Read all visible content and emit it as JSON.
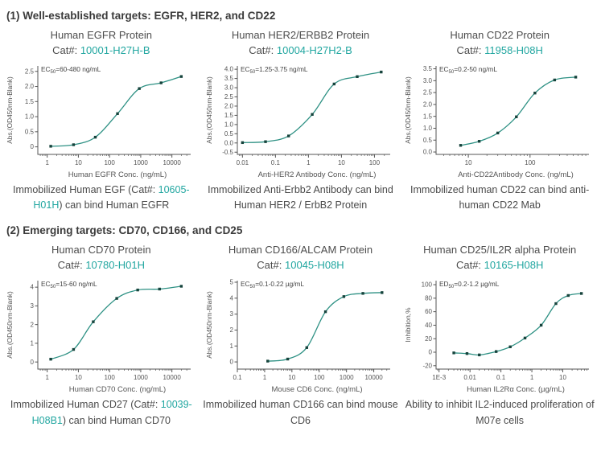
{
  "colors": {
    "accent_teal": "#21a6a0",
    "curve": "#2e9184",
    "marker": "#16433c",
    "axis": "#555555",
    "heading": "#3b3b3b",
    "body_text": "#4a4a4a"
  },
  "sections": [
    {
      "header": "(1) Well-established targets: EGFR, HER2, and CD22"
    },
    {
      "header": "(2) Emerging targets: CD70, CD166, and CD25"
    }
  ],
  "chart_data": [
    {
      "type": "scatter",
      "fit": "sigmoid",
      "title": "Human EGFR Protein",
      "cat_prefix": "Cat#: ",
      "cat_number": "10001-H27H-B",
      "annotation": {
        "prefix": "EC",
        "sub": "50",
        "text": "=60-480 ng/mL"
      },
      "xlabel": "Human EGFR Conc. (ng/mL)",
      "ylabel": "Abs.(OD450nm-Blank)",
      "xscale": "log",
      "xlim": [
        0.5,
        40000
      ],
      "ylim": [
        -0.25,
        2.68
      ],
      "yticks": [
        {
          "v": 0,
          "label": "0"
        },
        {
          "v": 0.5,
          "label": "0.5"
        },
        {
          "v": 1.0,
          "label": "1.0"
        },
        {
          "v": 1.5,
          "label": "1.5"
        },
        {
          "v": 2.0,
          "label": "2.0"
        },
        {
          "v": 2.5,
          "label": "2.5"
        }
      ],
      "xticks": [
        {
          "v": 1,
          "label": "1"
        },
        {
          "v": 10,
          "label": "10"
        },
        {
          "v": 100,
          "label": "100"
        },
        {
          "v": 1000,
          "label": "1000"
        },
        {
          "v": 10000,
          "label": "10000"
        }
      ],
      "x": [
        1.3,
        7,
        35,
        180,
        900,
        4500,
        20000
      ],
      "y": [
        0.02,
        0.07,
        0.32,
        1.1,
        1.93,
        2.12,
        2.33
      ],
      "caption": [
        {
          "text": "Immobilized Human EGF (Cat#: "
        },
        {
          "text": "10605-H01H",
          "accent": true
        },
        {
          "text": ") can bind Human EGFR"
        }
      ]
    },
    {
      "type": "scatter",
      "fit": "sigmoid",
      "title": "Human HER2/ERBB2 Protein",
      "cat_prefix": "Cat#: ",
      "cat_number": "10004-H27H2-B",
      "annotation": {
        "prefix": "EC",
        "sub": "50",
        "text": "=1.25-3.75 ng/mL"
      },
      "xlabel": "Anti-HER2 Antibody Conc. (ng/mL)",
      "ylabel": "Abs.(OD450nm-Blank)",
      "xscale": "log",
      "xlim": [
        0.007,
        300
      ],
      "ylim": [
        -0.62,
        4.18
      ],
      "yticks": [
        {
          "v": -0.5,
          "label": "-0.5"
        },
        {
          "v": 0.0,
          "label": "0.0"
        },
        {
          "v": 0.5,
          "label": "0.5"
        },
        {
          "v": 1.0,
          "label": "1.0"
        },
        {
          "v": 1.5,
          "label": "1.5"
        },
        {
          "v": 2.0,
          "label": "2.0"
        },
        {
          "v": 2.5,
          "label": "2.5"
        },
        {
          "v": 3.0,
          "label": "3.0"
        },
        {
          "v": 3.5,
          "label": "3.5"
        },
        {
          "v": 4.0,
          "label": "4.0"
        }
      ],
      "xticks": [
        {
          "v": 0.01,
          "label": "0.01"
        },
        {
          "v": 0.1,
          "label": "0.1"
        },
        {
          "v": 1,
          "label": "1"
        },
        {
          "v": 10,
          "label": "10"
        },
        {
          "v": 100,
          "label": "100"
        }
      ],
      "x": [
        0.01,
        0.05,
        0.25,
        1.3,
        6,
        30,
        160
      ],
      "y": [
        0.02,
        0.07,
        0.38,
        1.55,
        3.2,
        3.6,
        3.85
      ],
      "caption": [
        {
          "text": "Immobilized Anti-Erbb2 Antibody can bind Human HER2 / ErbB2 Protein"
        }
      ]
    },
    {
      "type": "scatter",
      "fit": "sigmoid",
      "title": "Human CD22 Protein",
      "cat_prefix": "Cat#: ",
      "cat_number": "11958-H08H",
      "annotation": {
        "prefix": "EC",
        "sub": "50",
        "text": "=0.2-50 ng/mL"
      },
      "xlabel": "Anti-CD22Antibody Conc. (ng/mL)",
      "ylabel": "Abs.(OD450nm-Blank)",
      "xscale": "log",
      "xlim": [
        3,
        900
      ],
      "ylim": [
        -0.1,
        3.62
      ],
      "yticks": [
        {
          "v": 0.0,
          "label": "0.0"
        },
        {
          "v": 0.5,
          "label": "0.5"
        },
        {
          "v": 1.0,
          "label": "1.0"
        },
        {
          "v": 1.5,
          "label": "1.5"
        },
        {
          "v": 2.0,
          "label": "2.0"
        },
        {
          "v": 2.5,
          "label": "2.5"
        },
        {
          "v": 3.0,
          "label": "3.0"
        },
        {
          "v": 3.5,
          "label": "3.5"
        }
      ],
      "xticks": [
        {
          "v": 10,
          "label": "10"
        },
        {
          "v": 100,
          "label": "100"
        }
      ],
      "x": [
        7.5,
        15,
        30,
        60,
        120,
        250,
        550
      ],
      "y": [
        0.28,
        0.45,
        0.8,
        1.48,
        2.48,
        3.03,
        3.15
      ],
      "caption": [
        {
          "text": "Immobilized human CD22 can bind anti-human CD22 Mab"
        }
      ]
    },
    {
      "type": "scatter",
      "fit": "sigmoid",
      "title": "Human CD70 Protein",
      "cat_prefix": "Cat#: ",
      "cat_number": "10780-H01H",
      "annotation": {
        "prefix": "EC",
        "sub": "50",
        "text": "=15-60 ng/mL"
      },
      "xlabel": "Human CD70 Conc. (ng/mL)",
      "ylabel": "Abs.(OD450nm-Blank)",
      "xscale": "log",
      "xlim": [
        0.5,
        40000
      ],
      "ylim": [
        -0.38,
        4.35
      ],
      "yticks": [
        {
          "v": 0,
          "label": "0"
        },
        {
          "v": 1,
          "label": "1"
        },
        {
          "v": 2,
          "label": "2"
        },
        {
          "v": 3,
          "label": "3"
        },
        {
          "v": 4,
          "label": "4"
        }
      ],
      "xticks": [
        {
          "v": 1,
          "label": "1"
        },
        {
          "v": 10,
          "label": "10"
        },
        {
          "v": 100,
          "label": "100"
        },
        {
          "v": 1000,
          "label": "1000"
        },
        {
          "v": 10000,
          "label": "10000"
        }
      ],
      "x": [
        1.3,
        7,
        30,
        170,
        800,
        4000,
        20000
      ],
      "y": [
        0.15,
        0.67,
        2.15,
        3.4,
        3.85,
        3.9,
        4.05
      ],
      "caption": [
        {
          "text": "Immobilized Human CD27 (Cat#: "
        },
        {
          "text": "10039-H08B1",
          "accent": true
        },
        {
          "text": ") can bind Human CD70"
        }
      ]
    },
    {
      "type": "scatter",
      "fit": "sigmoid",
      "title": "Human CD166/ALCAM Protein",
      "cat_prefix": "Cat#: ",
      "cat_number": "10045-H08H",
      "annotation": {
        "prefix": "EC",
        "sub": "50",
        "text": "=0.1-0.22 µg/mL"
      },
      "xlabel": "Mouse CD6 Conc. (ng/mL)",
      "ylabel": "Abs.(OD450nm-Blank)",
      "xscale": "log",
      "xlim": [
        0.1,
        40000
      ],
      "ylim": [
        -0.45,
        5.1
      ],
      "yticks": [
        {
          "v": 0,
          "label": "0"
        },
        {
          "v": 1,
          "label": "1"
        },
        {
          "v": 2,
          "label": "2"
        },
        {
          "v": 3,
          "label": "3"
        },
        {
          "v": 4,
          "label": "4"
        },
        {
          "v": 5,
          "label": "5"
        }
      ],
      "xticks": [
        {
          "v": 0.1,
          "label": "0.1"
        },
        {
          "v": 1,
          "label": "1"
        },
        {
          "v": 10,
          "label": "10"
        },
        {
          "v": 100,
          "label": "100"
        },
        {
          "v": 1000,
          "label": "1000"
        },
        {
          "v": 10000,
          "label": "10000"
        }
      ],
      "x": [
        1.3,
        7,
        35,
        170,
        800,
        4000,
        20000
      ],
      "y": [
        0.05,
        0.18,
        0.9,
        3.15,
        4.1,
        4.3,
        4.35
      ],
      "caption": [
        {
          "text": "Immobilized human CD166 can bind mouse CD6"
        }
      ]
    },
    {
      "type": "scatter",
      "fit": "sigmoid",
      "title": "Human CD25/IL2R alpha Protein",
      "cat_prefix": "Cat#: ",
      "cat_number": "10165-H08H",
      "annotation": {
        "prefix": "ED",
        "sub": "50",
        "text": "=0.2-1.2 µg/mL"
      },
      "xlabel": "Human IL2Rα Conc. (µg/mL)",
      "ylabel": "Inhibition,%",
      "xscale": "log",
      "xlim": [
        0.0008,
        70
      ],
      "ylim": [
        -25,
        106
      ],
      "yticks": [
        {
          "v": -20,
          "label": "-20"
        },
        {
          "v": 0,
          "label": "0"
        },
        {
          "v": 20,
          "label": "20"
        },
        {
          "v": 40,
          "label": "40"
        },
        {
          "v": 60,
          "label": "60"
        },
        {
          "v": 80,
          "label": "80"
        },
        {
          "v": 100,
          "label": "100"
        }
      ],
      "xticks": [
        {
          "v": 0.001,
          "label": "1E-3"
        },
        {
          "v": 0.01,
          "label": "0.01"
        },
        {
          "v": 0.1,
          "label": "0.1"
        },
        {
          "v": 1,
          "label": "1"
        },
        {
          "v": 10,
          "label": "10"
        }
      ],
      "x": [
        0.003,
        0.008,
        0.02,
        0.07,
        0.2,
        0.6,
        2,
        6,
        15,
        40
      ],
      "y": [
        -1,
        -2,
        -4,
        1,
        8,
        21,
        40,
        72,
        84,
        87
      ],
      "caption": [
        {
          "text": "Ability to inhibit IL2-induced proliferation of M07e cells"
        }
      ]
    }
  ]
}
